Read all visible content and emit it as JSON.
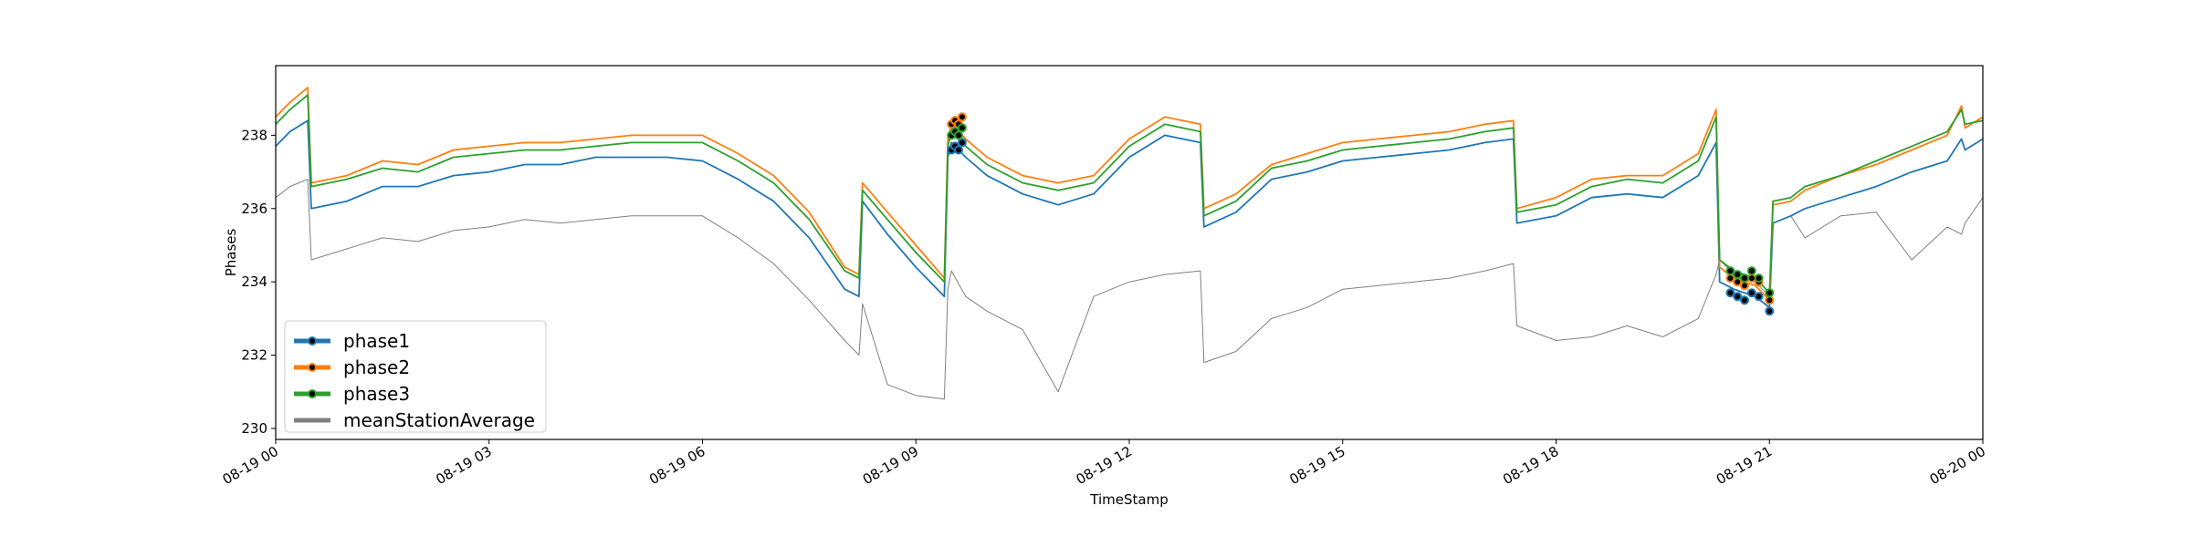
{
  "chart_data": {
    "type": "line",
    "xlabel": "TimeStamp",
    "ylabel": "Phases",
    "xlim": [
      0,
      24
    ],
    "ylim": [
      229.7,
      239.9
    ],
    "x_ticks": [
      {
        "x": 0,
        "label": "08-19 00"
      },
      {
        "x": 3,
        "label": "08-19 03"
      },
      {
        "x": 6,
        "label": "08-19 06"
      },
      {
        "x": 9,
        "label": "08-19 09"
      },
      {
        "x": 12,
        "label": "08-19 12"
      },
      {
        "x": 15,
        "label": "08-19 15"
      },
      {
        "x": 18,
        "label": "08-19 18"
      },
      {
        "x": 21,
        "label": "08-19 21"
      },
      {
        "x": 24,
        "label": "08-20 00"
      }
    ],
    "y_ticks": [
      230,
      232,
      234,
      236,
      238
    ],
    "grid": false,
    "legend_position": "lower-left",
    "series": [
      {
        "name": "phase1",
        "color": "#1f77b4",
        "x": [
          0,
          0.2,
          0.45,
          0.5,
          1,
          1.5,
          2,
          2.5,
          3,
          3.5,
          4,
          4.5,
          5,
          5.5,
          6,
          6.5,
          7,
          7.5,
          8,
          8.2,
          8.25,
          8.6,
          9,
          9.4,
          9.45,
          9.5,
          9.7,
          10,
          10.5,
          11,
          11.5,
          12,
          12.5,
          13,
          13.05,
          13.5,
          14,
          14.5,
          15,
          15.5,
          16,
          16.5,
          17,
          17.4,
          17.45,
          18,
          18.5,
          19,
          19.5,
          20,
          20.25,
          20.3,
          20.5,
          20.8,
          21,
          21.05,
          21.3,
          21.5,
          22,
          22.5,
          23,
          23.5,
          23.7,
          23.75,
          24
        ],
        "values": [
          237.7,
          238.1,
          238.4,
          236.0,
          236.2,
          236.6,
          236.6,
          236.9,
          237.0,
          237.2,
          237.2,
          237.4,
          237.4,
          237.4,
          237.3,
          236.8,
          236.2,
          235.2,
          233.8,
          233.6,
          236.2,
          235.3,
          234.4,
          233.6,
          237.4,
          237.8,
          237.4,
          236.9,
          236.4,
          236.1,
          236.4,
          237.4,
          238.0,
          237.8,
          235.5,
          235.9,
          236.8,
          237.0,
          237.3,
          237.4,
          237.5,
          237.6,
          237.8,
          237.9,
          235.6,
          235.8,
          236.3,
          236.4,
          236.3,
          236.9,
          237.8,
          234.0,
          233.8,
          233.6,
          233.3,
          235.6,
          235.8,
          236.0,
          236.3,
          236.6,
          237.0,
          237.3,
          237.9,
          237.6,
          237.9
        ]
      },
      {
        "name": "phase2",
        "color": "#ff7f0e",
        "x": [
          0,
          0.2,
          0.45,
          0.5,
          1,
          1.5,
          2,
          2.5,
          3,
          3.5,
          4,
          4.5,
          5,
          5.5,
          6,
          6.5,
          7,
          7.5,
          8,
          8.2,
          8.25,
          8.6,
          9,
          9.4,
          9.45,
          9.5,
          9.7,
          10,
          10.5,
          11,
          11.5,
          12,
          12.5,
          13,
          13.05,
          13.5,
          14,
          14.5,
          15,
          15.5,
          16,
          16.5,
          17,
          17.4,
          17.45,
          18,
          18.5,
          19,
          19.5,
          20,
          20.25,
          20.3,
          20.5,
          20.8,
          21,
          21.05,
          21.3,
          21.5,
          22,
          22.5,
          23,
          23.5,
          23.7,
          23.75,
          24
        ],
        "values": [
          238.5,
          238.9,
          239.3,
          236.7,
          236.9,
          237.3,
          237.2,
          237.6,
          237.7,
          237.8,
          237.8,
          237.9,
          238.0,
          238.0,
          238.0,
          237.5,
          236.9,
          235.9,
          234.4,
          234.2,
          236.7,
          235.9,
          235.0,
          234.1,
          237.9,
          238.3,
          237.9,
          237.4,
          236.9,
          236.7,
          236.9,
          237.9,
          238.5,
          238.3,
          236.0,
          236.4,
          237.2,
          237.5,
          237.8,
          237.9,
          238.0,
          238.1,
          238.3,
          238.4,
          236.0,
          236.3,
          236.8,
          236.9,
          236.9,
          237.5,
          238.7,
          234.4,
          234.1,
          233.9,
          233.5,
          236.1,
          236.2,
          236.5,
          236.9,
          237.2,
          237.6,
          238.0,
          238.8,
          238.2,
          238.5
        ]
      },
      {
        "name": "phase3",
        "color": "#2ca02c",
        "x": [
          0,
          0.2,
          0.45,
          0.5,
          1,
          1.5,
          2,
          2.5,
          3,
          3.5,
          4,
          4.5,
          5,
          5.5,
          6,
          6.5,
          7,
          7.5,
          8,
          8.2,
          8.25,
          8.6,
          9,
          9.4,
          9.45,
          9.5,
          9.7,
          10,
          10.5,
          11,
          11.5,
          12,
          12.5,
          13,
          13.05,
          13.5,
          14,
          14.5,
          15,
          15.5,
          16,
          16.5,
          17,
          17.4,
          17.45,
          18,
          18.5,
          19,
          19.5,
          20,
          20.25,
          20.3,
          20.5,
          20.8,
          21,
          21.05,
          21.3,
          21.5,
          22,
          22.5,
          23,
          23.5,
          23.7,
          23.75,
          24
        ],
        "values": [
          238.3,
          238.7,
          239.1,
          236.6,
          236.8,
          237.1,
          237.0,
          237.4,
          237.5,
          237.6,
          237.6,
          237.7,
          237.8,
          237.8,
          237.8,
          237.3,
          236.7,
          235.7,
          234.3,
          234.1,
          236.5,
          235.7,
          234.8,
          234.0,
          237.7,
          238.1,
          237.7,
          237.2,
          236.7,
          236.5,
          236.7,
          237.7,
          238.3,
          238.1,
          235.8,
          236.2,
          237.1,
          237.3,
          237.6,
          237.7,
          237.8,
          237.9,
          238.1,
          238.2,
          235.9,
          236.1,
          236.6,
          236.8,
          236.7,
          237.3,
          238.5,
          234.6,
          234.3,
          234.1,
          233.7,
          236.2,
          236.3,
          236.6,
          236.9,
          237.3,
          237.7,
          238.1,
          238.7,
          238.3,
          238.4
        ]
      },
      {
        "name": "meanStationAverage",
        "color": "#808080",
        "x": [
          0,
          0.2,
          0.45,
          0.5,
          1,
          1.5,
          2,
          2.5,
          3,
          3.5,
          4,
          4.5,
          5,
          5.5,
          6,
          6.5,
          7,
          7.5,
          8,
          8.2,
          8.25,
          8.6,
          9,
          9.4,
          9.45,
          9.5,
          9.7,
          10,
          10.5,
          11,
          11.5,
          12,
          12.5,
          13,
          13.05,
          13.5,
          14,
          14.5,
          15,
          15.5,
          16,
          16.5,
          17,
          17.4,
          17.45,
          18,
          18.5,
          19,
          19.5,
          20,
          20.25,
          20.3,
          20.5,
          20.8,
          21,
          21.05,
          21.3,
          21.5,
          22,
          22.5,
          23,
          23.5,
          23.7,
          23.75,
          24
        ],
        "values": [
          236.3,
          236.6,
          236.8,
          234.6,
          234.9,
          235.2,
          235.1,
          235.4,
          235.5,
          235.7,
          235.6,
          235.7,
          235.8,
          235.8,
          235.8,
          235.2,
          234.5,
          233.5,
          232.4,
          232.0,
          233.4,
          231.2,
          230.9,
          230.8,
          233.8,
          234.3,
          233.6,
          233.2,
          232.7,
          231.0,
          233.6,
          234.0,
          234.2,
          234.3,
          231.8,
          232.1,
          233.0,
          233.3,
          233.8,
          233.9,
          234.0,
          234.1,
          234.3,
          234.5,
          232.8,
          232.4,
          232.5,
          232.8,
          232.5,
          233.0,
          234.2,
          234.6,
          234.2,
          234.0,
          233.6,
          235.6,
          235.8,
          235.2,
          235.8,
          235.9,
          234.6,
          235.5,
          235.3,
          235.6,
          236.3
        ]
      }
    ],
    "marker_series": [
      {
        "name": "phase1",
        "x": [
          9.5,
          9.55,
          9.6,
          9.65,
          20.45,
          20.55,
          20.65,
          20.75,
          20.85,
          21.0
        ],
        "values": [
          237.6,
          237.7,
          237.6,
          237.8,
          233.7,
          233.6,
          233.5,
          233.7,
          233.6,
          233.2
        ]
      },
      {
        "name": "phase2",
        "x": [
          9.5,
          9.55,
          9.6,
          9.65,
          20.45,
          20.55,
          20.65,
          20.75,
          20.85,
          21.0
        ],
        "values": [
          238.3,
          238.4,
          238.3,
          238.5,
          234.1,
          234.0,
          233.9,
          234.1,
          234.0,
          233.5
        ]
      },
      {
        "name": "phase3",
        "x": [
          9.5,
          9.55,
          9.6,
          9.65,
          20.45,
          20.55,
          20.65,
          20.75,
          20.85,
          21.0
        ],
        "values": [
          238.0,
          238.1,
          238.0,
          238.2,
          234.3,
          234.2,
          234.1,
          234.3,
          234.1,
          233.7
        ]
      }
    ]
  }
}
